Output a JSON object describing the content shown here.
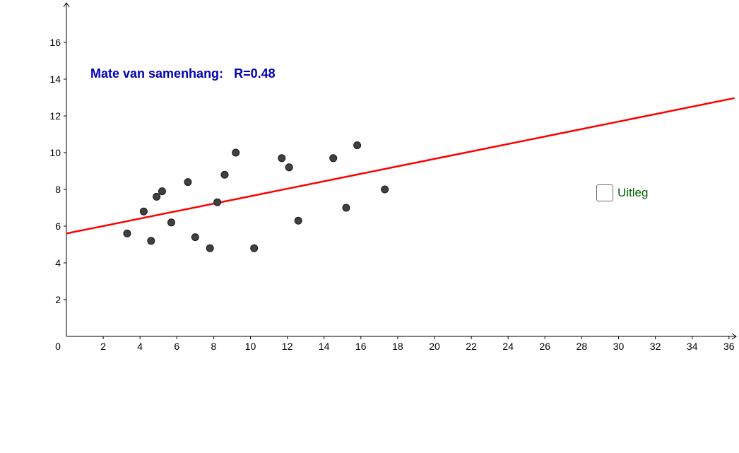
{
  "annotation": {
    "label": "Mate van samenhang:",
    "value": "R=0.48",
    "color": "#0000b4"
  },
  "checkbox": {
    "label": "Uitleg",
    "checked": false,
    "color": "#006400"
  },
  "chart_data": {
    "type": "scatter",
    "x_ticks": [
      "0",
      "2",
      "4",
      "6",
      "8",
      "10",
      "12",
      "14",
      "16",
      "18",
      "20",
      "22",
      "24",
      "26",
      "28",
      "30",
      "32",
      "34",
      "36"
    ],
    "y_ticks": [
      "2",
      "4",
      "6",
      "8",
      "10",
      "12",
      "14",
      "16"
    ],
    "xlim": [
      0,
      36.3
    ],
    "ylim": [
      0,
      18.1
    ],
    "points": [
      {
        "x": 3.3,
        "y": 5.6
      },
      {
        "x": 4.2,
        "y": 6.8
      },
      {
        "x": 4.6,
        "y": 5.2
      },
      {
        "x": 4.9,
        "y": 7.6
      },
      {
        "x": 5.2,
        "y": 7.9
      },
      {
        "x": 5.7,
        "y": 6.2
      },
      {
        "x": 6.6,
        "y": 8.4
      },
      {
        "x": 7.0,
        "y": 5.4
      },
      {
        "x": 7.8,
        "y": 4.8
      },
      {
        "x": 8.2,
        "y": 7.3
      },
      {
        "x": 8.6,
        "y": 8.8
      },
      {
        "x": 9.2,
        "y": 10.0
      },
      {
        "x": 10.2,
        "y": 4.8
      },
      {
        "x": 11.7,
        "y": 9.7
      },
      {
        "x": 12.1,
        "y": 9.2
      },
      {
        "x": 12.6,
        "y": 6.3
      },
      {
        "x": 14.5,
        "y": 9.7
      },
      {
        "x": 15.2,
        "y": 7.0
      },
      {
        "x": 15.8,
        "y": 10.4
      },
      {
        "x": 17.3,
        "y": 8.0
      }
    ],
    "trendline": {
      "slope": 0.203,
      "intercept": 5.6,
      "color": "#ff0000"
    },
    "point_color": "#404040",
    "grid": false
  }
}
